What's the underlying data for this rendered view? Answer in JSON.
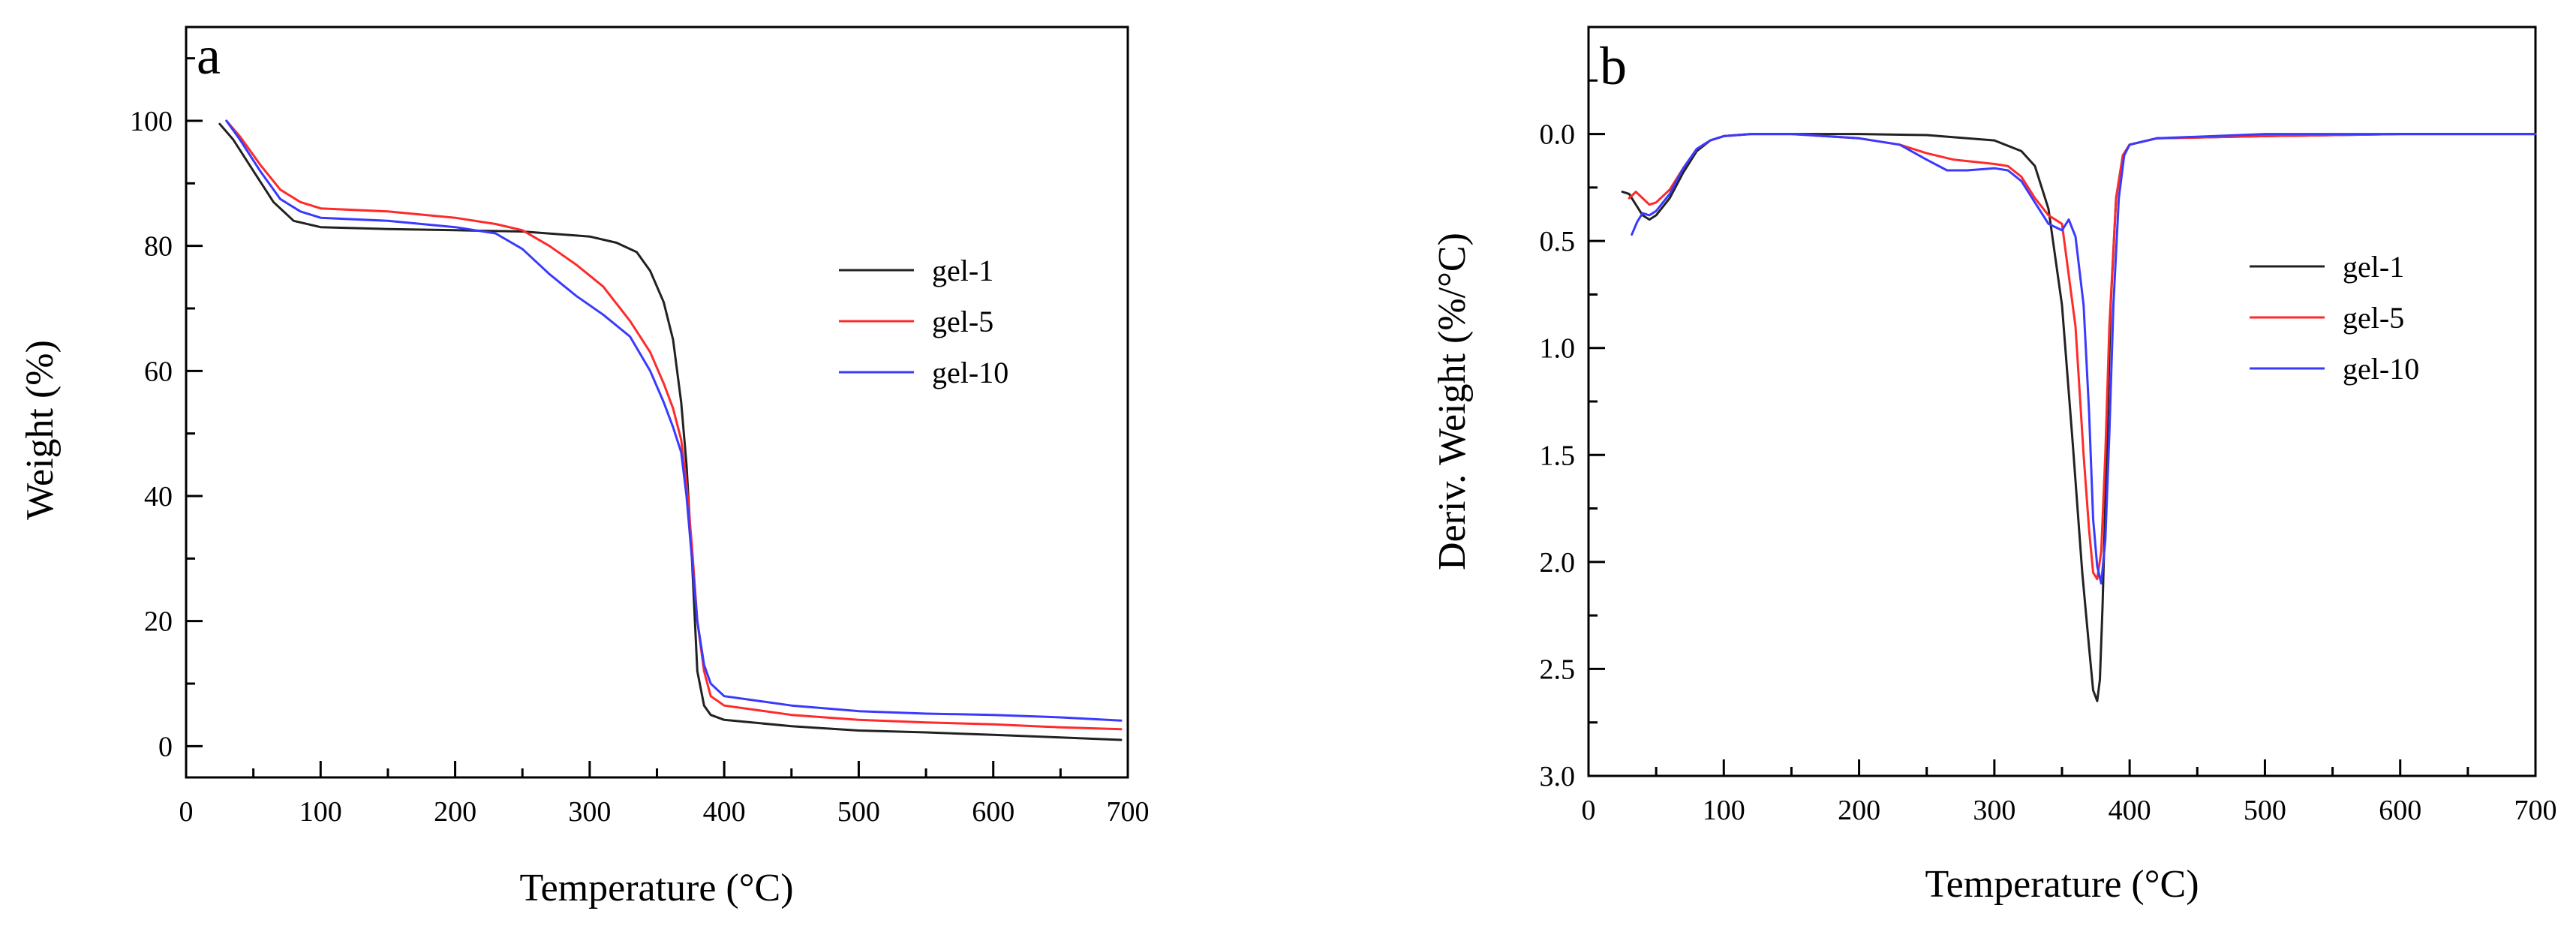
{
  "figure": {
    "panels": [
      "a",
      "b"
    ]
  },
  "chart_data": [
    {
      "type": "line",
      "panel_label": "a",
      "title": "",
      "xlabel": "Temperature (°C)",
      "ylabel": "Weight (%)",
      "xlim": [
        0,
        700
      ],
      "ylim": [
        -5,
        115
      ],
      "xticks": [
        0,
        100,
        200,
        300,
        400,
        500,
        600,
        700
      ],
      "yticks": [
        0,
        20,
        40,
        60,
        80,
        100
      ],
      "legend_position": "middle-right",
      "series": [
        {
          "name": "gel-1",
          "color": "#222222",
          "x": [
            25,
            35,
            50,
            65,
            80,
            100,
            150,
            200,
            250,
            300,
            320,
            335,
            345,
            355,
            362,
            368,
            372,
            376,
            380,
            385,
            390,
            400,
            450,
            500,
            550,
            600,
            650,
            695
          ],
          "y": [
            99.5,
            97,
            92,
            87,
            84,
            83,
            82.7,
            82.5,
            82.3,
            81.5,
            80.5,
            79,
            76,
            71,
            65,
            55,
            45,
            30,
            12,
            6.5,
            5,
            4.2,
            3.2,
            2.5,
            2.2,
            1.8,
            1.4,
            1
          ]
        },
        {
          "name": "gel-5",
          "color": "#ff2a2a",
          "x": [
            30,
            40,
            55,
            70,
            85,
            100,
            150,
            200,
            230,
            250,
            270,
            290,
            310,
            330,
            345,
            355,
            362,
            368,
            372,
            376,
            380,
            385,
            390,
            400,
            450,
            500,
            550,
            600,
            650,
            695
          ],
          "y": [
            100,
            97.5,
            93,
            89,
            87,
            86,
            85.5,
            84.5,
            83.5,
            82.5,
            80,
            77,
            73.5,
            68,
            63,
            58,
            54,
            49,
            42,
            32,
            20,
            12,
            8,
            6.5,
            5,
            4.2,
            3.8,
            3.5,
            3,
            2.7
          ]
        },
        {
          "name": "gel-10",
          "color": "#3a3aff",
          "x": [
            30,
            40,
            55,
            70,
            85,
            100,
            150,
            200,
            230,
            250,
            270,
            290,
            310,
            330,
            345,
            355,
            362,
            368,
            372,
            376,
            380,
            385,
            390,
            400,
            450,
            500,
            550,
            600,
            650,
            695
          ],
          "y": [
            100,
            97,
            92,
            87.5,
            85.5,
            84.5,
            84,
            83,
            82,
            79.5,
            75.5,
            72,
            69,
            65.5,
            60,
            55,
            51,
            47,
            40,
            30,
            20,
            13,
            10,
            8,
            6.5,
            5.6,
            5.2,
            5,
            4.6,
            4.1
          ]
        }
      ]
    },
    {
      "type": "line",
      "panel_label": "b",
      "title": "",
      "xlabel": "Temperature (°C)",
      "ylabel": "Deriv. Weight (%/°C)",
      "xlim": [
        0,
        700
      ],
      "ylim": [
        -0.5,
        3.0
      ],
      "y_inverted": true,
      "xticks": [
        0,
        100,
        200,
        300,
        400,
        500,
        600,
        700
      ],
      "yticks": [
        "0.0",
        "0.5",
        "1.0",
        "1.5",
        "2.0",
        "2.5",
        "3.0"
      ],
      "legend_position": "middle-right",
      "series": [
        {
          "name": "gel-1",
          "color": "#222222",
          "x": [
            25,
            30,
            35,
            40,
            45,
            50,
            60,
            70,
            80,
            90,
            100,
            120,
            150,
            200,
            250,
            300,
            320,
            330,
            340,
            350,
            358,
            365,
            370,
            373,
            376,
            378,
            380,
            383,
            386,
            390,
            395,
            400,
            420,
            500,
            600,
            700
          ],
          "y": [
            0.27,
            0.28,
            0.33,
            0.38,
            0.4,
            0.38,
            0.3,
            0.18,
            0.08,
            0.03,
            0.01,
            0.0,
            0.0,
            0.0,
            0.005,
            0.03,
            0.08,
            0.15,
            0.35,
            0.8,
            1.45,
            2.05,
            2.4,
            2.6,
            2.65,
            2.55,
            2.2,
            1.5,
            0.8,
            0.3,
            0.1,
            0.05,
            0.02,
            0.01,
            0.0,
            0.0
          ]
        },
        {
          "name": "gel-5",
          "color": "#ff2a2a",
          "x": [
            30,
            35,
            40,
            45,
            50,
            60,
            70,
            80,
            90,
            100,
            120,
            150,
            200,
            230,
            250,
            270,
            300,
            310,
            320,
            330,
            340,
            350,
            360,
            366,
            370,
            373,
            376,
            379,
            382,
            385,
            390,
            395,
            400,
            420,
            500,
            600,
            700
          ],
          "y": [
            0.3,
            0.27,
            0.3,
            0.33,
            0.32,
            0.26,
            0.16,
            0.07,
            0.03,
            0.01,
            0.0,
            0.0,
            0.02,
            0.05,
            0.09,
            0.12,
            0.14,
            0.15,
            0.2,
            0.3,
            0.38,
            0.42,
            0.9,
            1.5,
            1.85,
            2.05,
            2.08,
            1.95,
            1.5,
            0.9,
            0.3,
            0.1,
            0.05,
            0.02,
            0.01,
            0.0,
            0.0
          ]
        },
        {
          "name": "gel-10",
          "color": "#3a3aff",
          "x": [
            32,
            36,
            40,
            45,
            50,
            60,
            70,
            80,
            90,
            100,
            120,
            150,
            200,
            230,
            250,
            265,
            280,
            300,
            310,
            320,
            330,
            340,
            350,
            355,
            360,
            366,
            370,
            373,
            376,
            379,
            382,
            385,
            388,
            392,
            396,
            400,
            420,
            500,
            560,
            600,
            700
          ],
          "y": [
            0.47,
            0.41,
            0.37,
            0.38,
            0.36,
            0.28,
            0.16,
            0.07,
            0.03,
            0.01,
            0.0,
            0.0,
            0.02,
            0.05,
            0.12,
            0.17,
            0.17,
            0.16,
            0.17,
            0.22,
            0.32,
            0.42,
            0.45,
            0.4,
            0.48,
            0.8,
            1.3,
            1.8,
            2.02,
            2.1,
            1.9,
            1.4,
            0.8,
            0.3,
            0.1,
            0.05,
            0.02,
            0.0,
            0.0,
            0.0,
            0.0
          ]
        }
      ]
    }
  ]
}
